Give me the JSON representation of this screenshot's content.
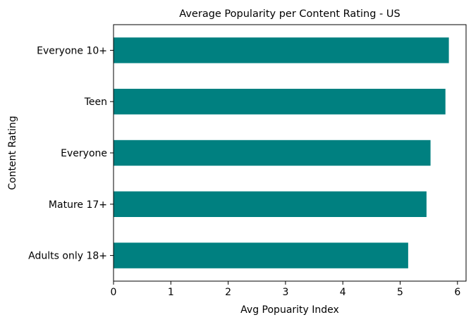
{
  "chart_data": {
    "type": "bar",
    "orientation": "horizontal",
    "title": "Average Popularity per Content Rating - US",
    "xlabel": "Avg Popuarity Index",
    "ylabel": "Content Rating",
    "categories": [
      "Everyone 10+",
      "Teen",
      "Everyone",
      "Mature 17+",
      "Adults only 18+"
    ],
    "values": [
      5.85,
      5.79,
      5.53,
      5.46,
      5.14
    ],
    "xlim": [
      0,
      6.15
    ],
    "xticks": [
      "0",
      "1",
      "2",
      "3",
      "4",
      "5",
      "6"
    ],
    "bar_color": "#008080",
    "grid": false,
    "legend": "none"
  }
}
